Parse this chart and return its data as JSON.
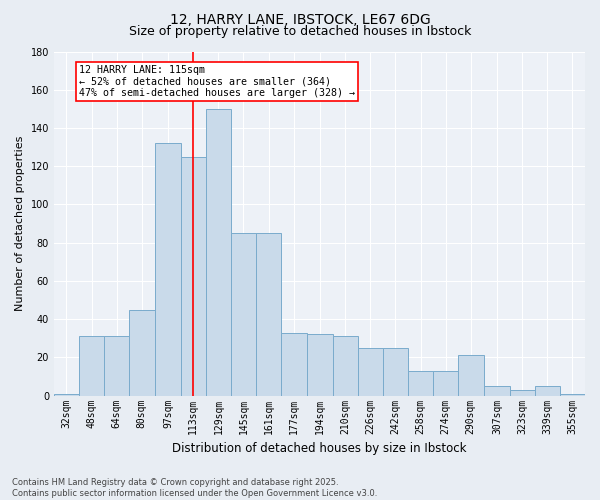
{
  "title1": "12, HARRY LANE, IBSTOCK, LE67 6DG",
  "title2": "Size of property relative to detached houses in Ibstock",
  "xlabel": "Distribution of detached houses by size in Ibstock",
  "ylabel": "Number of detached properties",
  "bar_centers": [
    32,
    48,
    64,
    80,
    97,
    113,
    129,
    145,
    161,
    177,
    194,
    210,
    226,
    242,
    258,
    274,
    290,
    307,
    323,
    339,
    355
  ],
  "bar_heights": [
    1,
    31,
    31,
    45,
    132,
    125,
    150,
    85,
    85,
    33,
    32,
    31,
    25,
    25,
    13,
    13,
    21,
    5,
    3,
    5,
    1
  ],
  "bar_color": "#c9daea",
  "bar_edge_color": "#7aabcc",
  "vline_x": 113,
  "vline_color": "red",
  "annotation_text": "12 HARRY LANE: 115sqm\n← 52% of detached houses are smaller (364)\n47% of semi-detached houses are larger (328) →",
  "annotation_box_facecolor": "white",
  "annotation_box_edgecolor": "red",
  "ylim": [
    0,
    180
  ],
  "yticks": [
    0,
    20,
    40,
    60,
    80,
    100,
    120,
    140,
    160,
    180
  ],
  "footer1": "Contains HM Land Registry data © Crown copyright and database right 2025.",
  "footer2": "Contains public sector information licensed under the Open Government Licence v3.0.",
  "fig_bg_color": "#e8edf3",
  "plot_bg_color": "#edf1f7",
  "grid_color": "#ffffff",
  "title_fontsize": 10,
  "subtitle_fontsize": 9,
  "tick_fontsize": 7,
  "ylabel_fontsize": 8,
  "xlabel_fontsize": 8.5
}
